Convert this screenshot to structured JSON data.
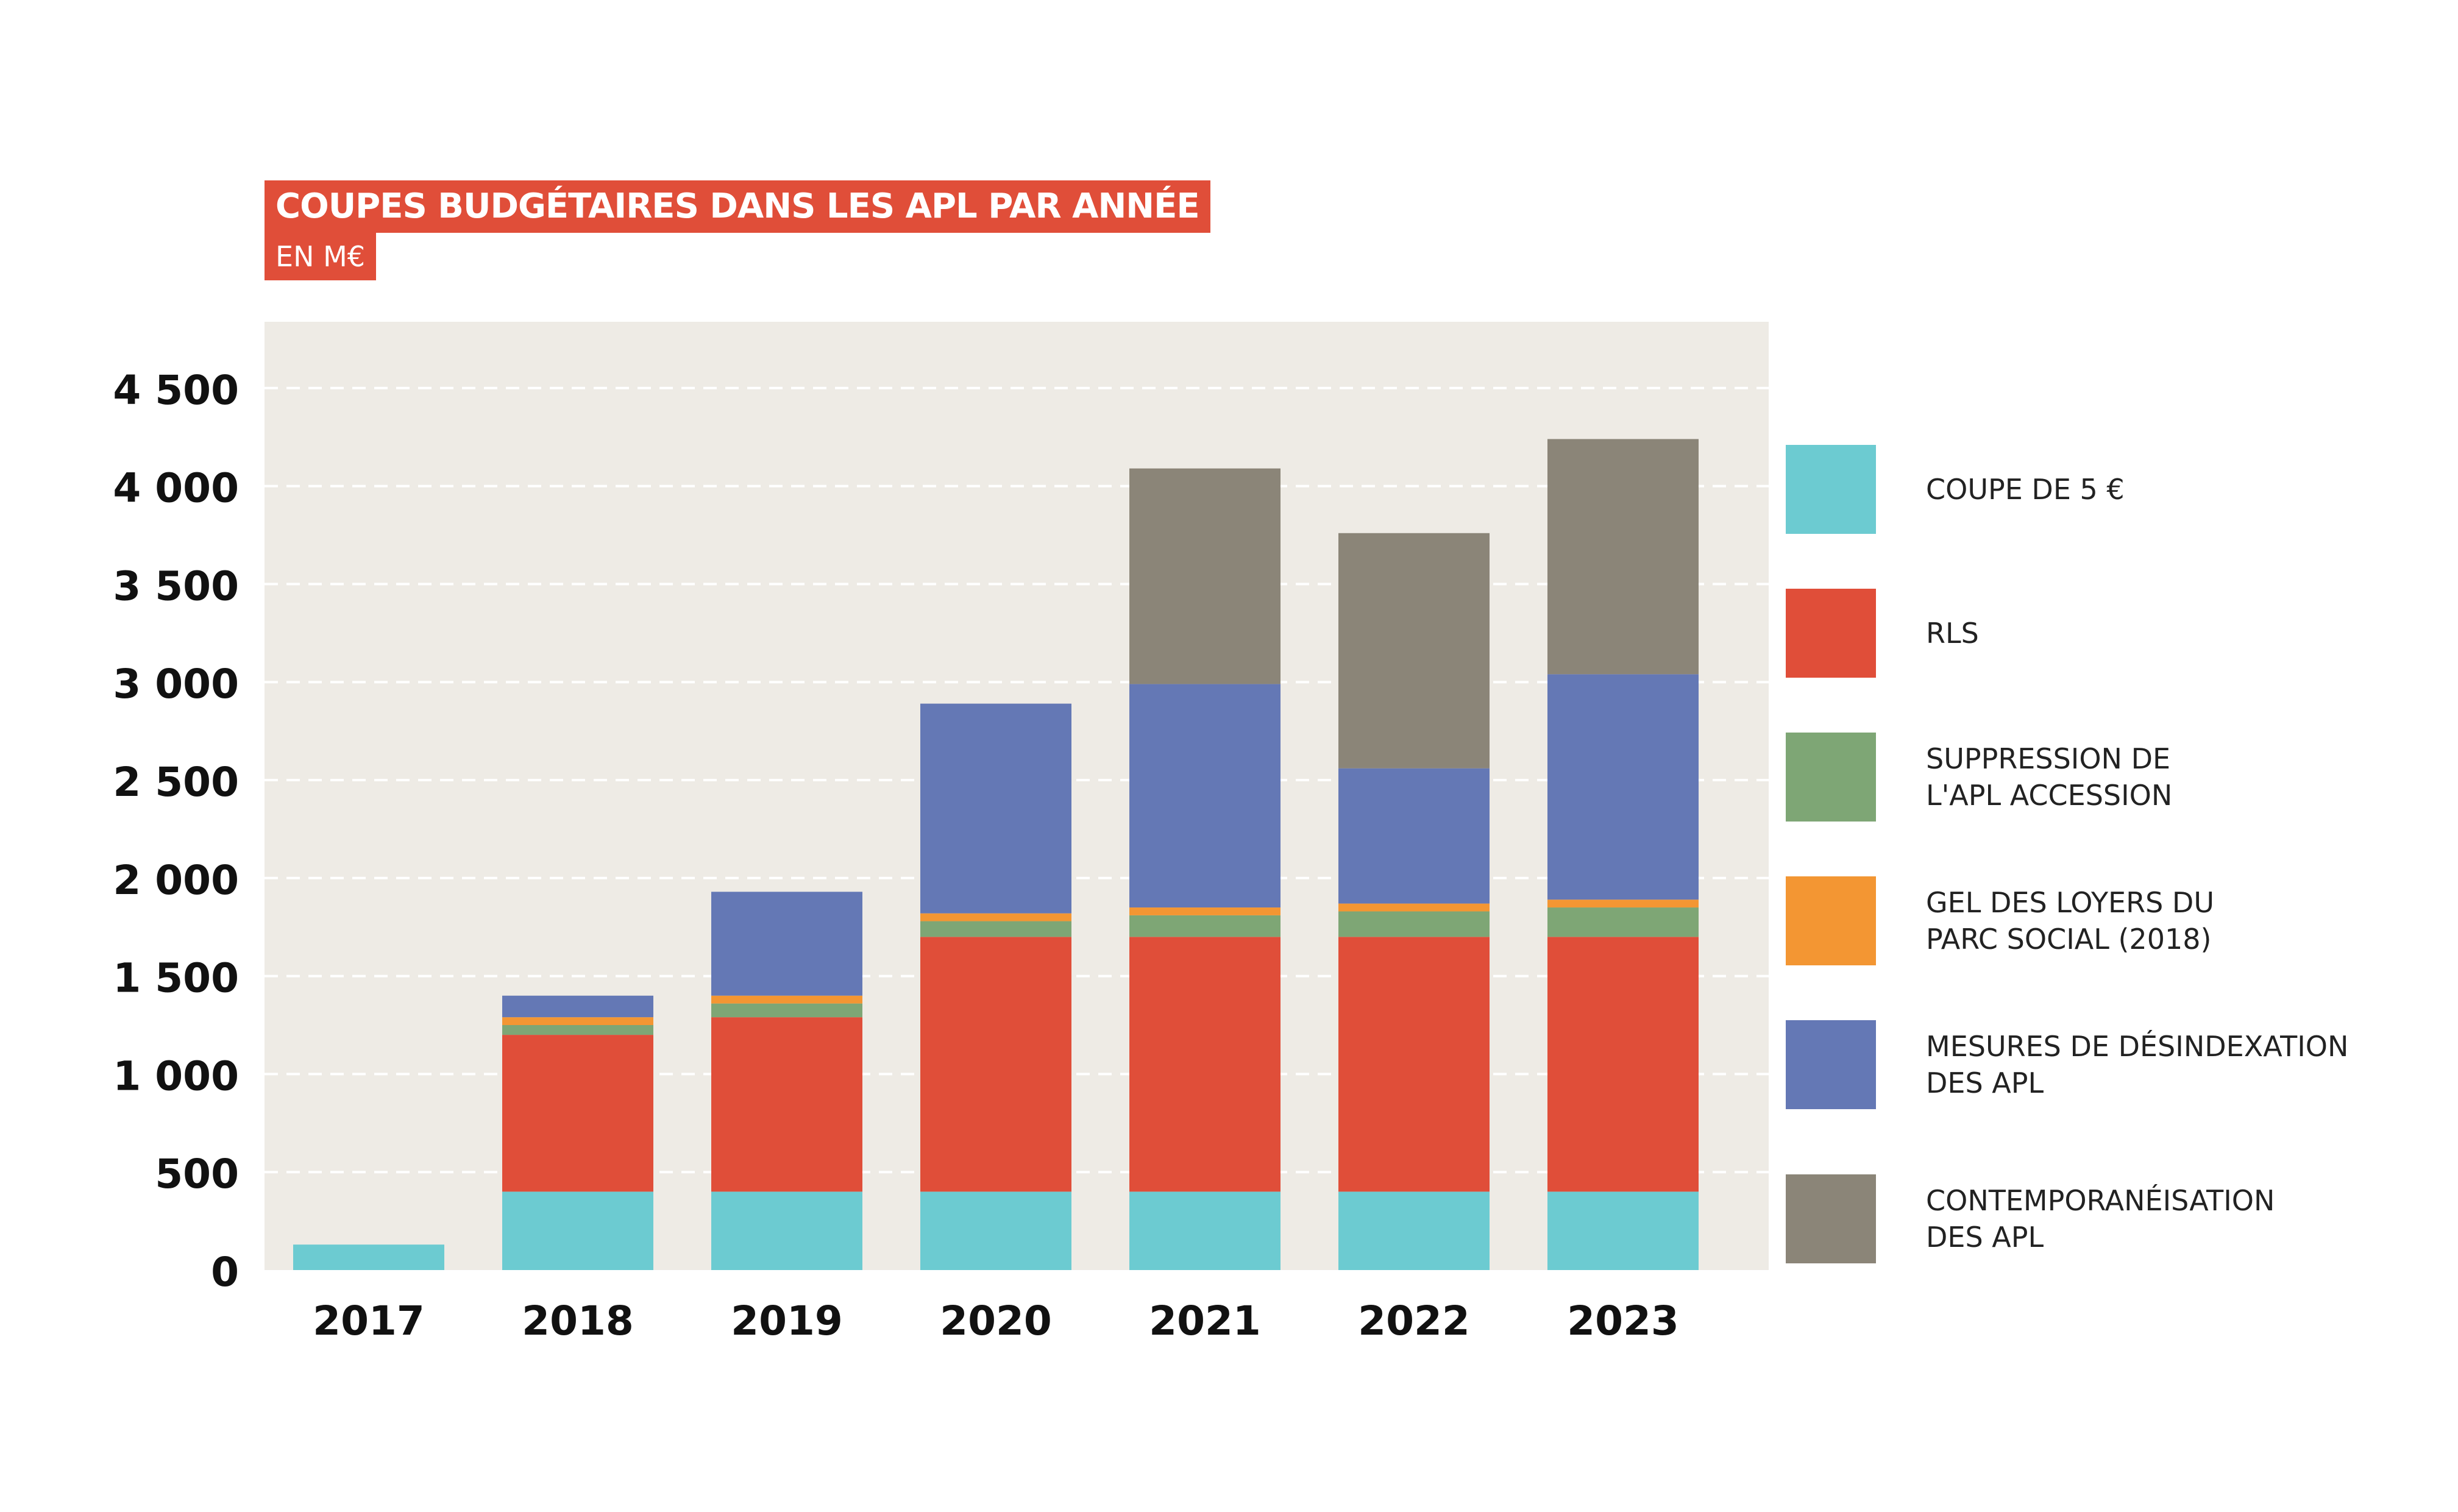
{
  "title": "COUPES BUDGÉTAIRES DANS LES APL PAR ANNÉE",
  "subtitle": "EN M€",
  "colors": {
    "plot_bg": "#eeebe5",
    "title_bg": "#e04e39",
    "grid": "#ffffff"
  },
  "chart_data": {
    "type": "bar",
    "stacked": true,
    "title": "COUPES BUDGÉTAIRES DANS LES APL PAR ANNÉE",
    "subtitle": "EN M€",
    "xlabel": "",
    "ylabel": "",
    "ylim": [
      0,
      5000
    ],
    "yticks": [
      0,
      500,
      1000,
      1500,
      2000,
      2500,
      3000,
      3500,
      4000,
      4500
    ],
    "ytick_labels": [
      "0",
      "500",
      "1 000",
      "1 500",
      "2 000",
      "2 500",
      "3 000",
      "3 500",
      "4 000",
      "4 500"
    ],
    "grid": true,
    "legend_position": "right",
    "categories": [
      "2017",
      "2018",
      "2019",
      "2020",
      "2021",
      "2022",
      "2023"
    ],
    "series": [
      {
        "name": "COUPE DE 5 €",
        "color": "#6ccbd1",
        "values": [
          130,
          400,
          400,
          400,
          400,
          400,
          400
        ]
      },
      {
        "name": "RLS",
        "color": "#e04e39",
        "values": [
          0,
          800,
          890,
          1300,
          1300,
          1300,
          1300
        ]
      },
      {
        "name": "SUPPRESSION DE\nL'APL ACCESSION",
        "color": "#7ea675",
        "values": [
          0,
          50,
          70,
          80,
          110,
          130,
          150
        ]
      },
      {
        "name": "GEL DES LOYERS DU\nPARC SOCIAL (2018)",
        "color": "#f39633",
        "values": [
          0,
          40,
          40,
          40,
          40,
          40,
          40
        ]
      },
      {
        "name": "MESURES DE DÉSINDEXATION\nDES APL",
        "color": "#6478b5",
        "values": [
          0,
          110,
          530,
          1070,
          1140,
          690,
          1150
        ]
      },
      {
        "name": "CONTEMPORANÉISATION\nDES APL",
        "color": "#8b8578",
        "values": [
          0,
          0,
          0,
          0,
          1100,
          1200,
          1200
        ]
      }
    ]
  }
}
